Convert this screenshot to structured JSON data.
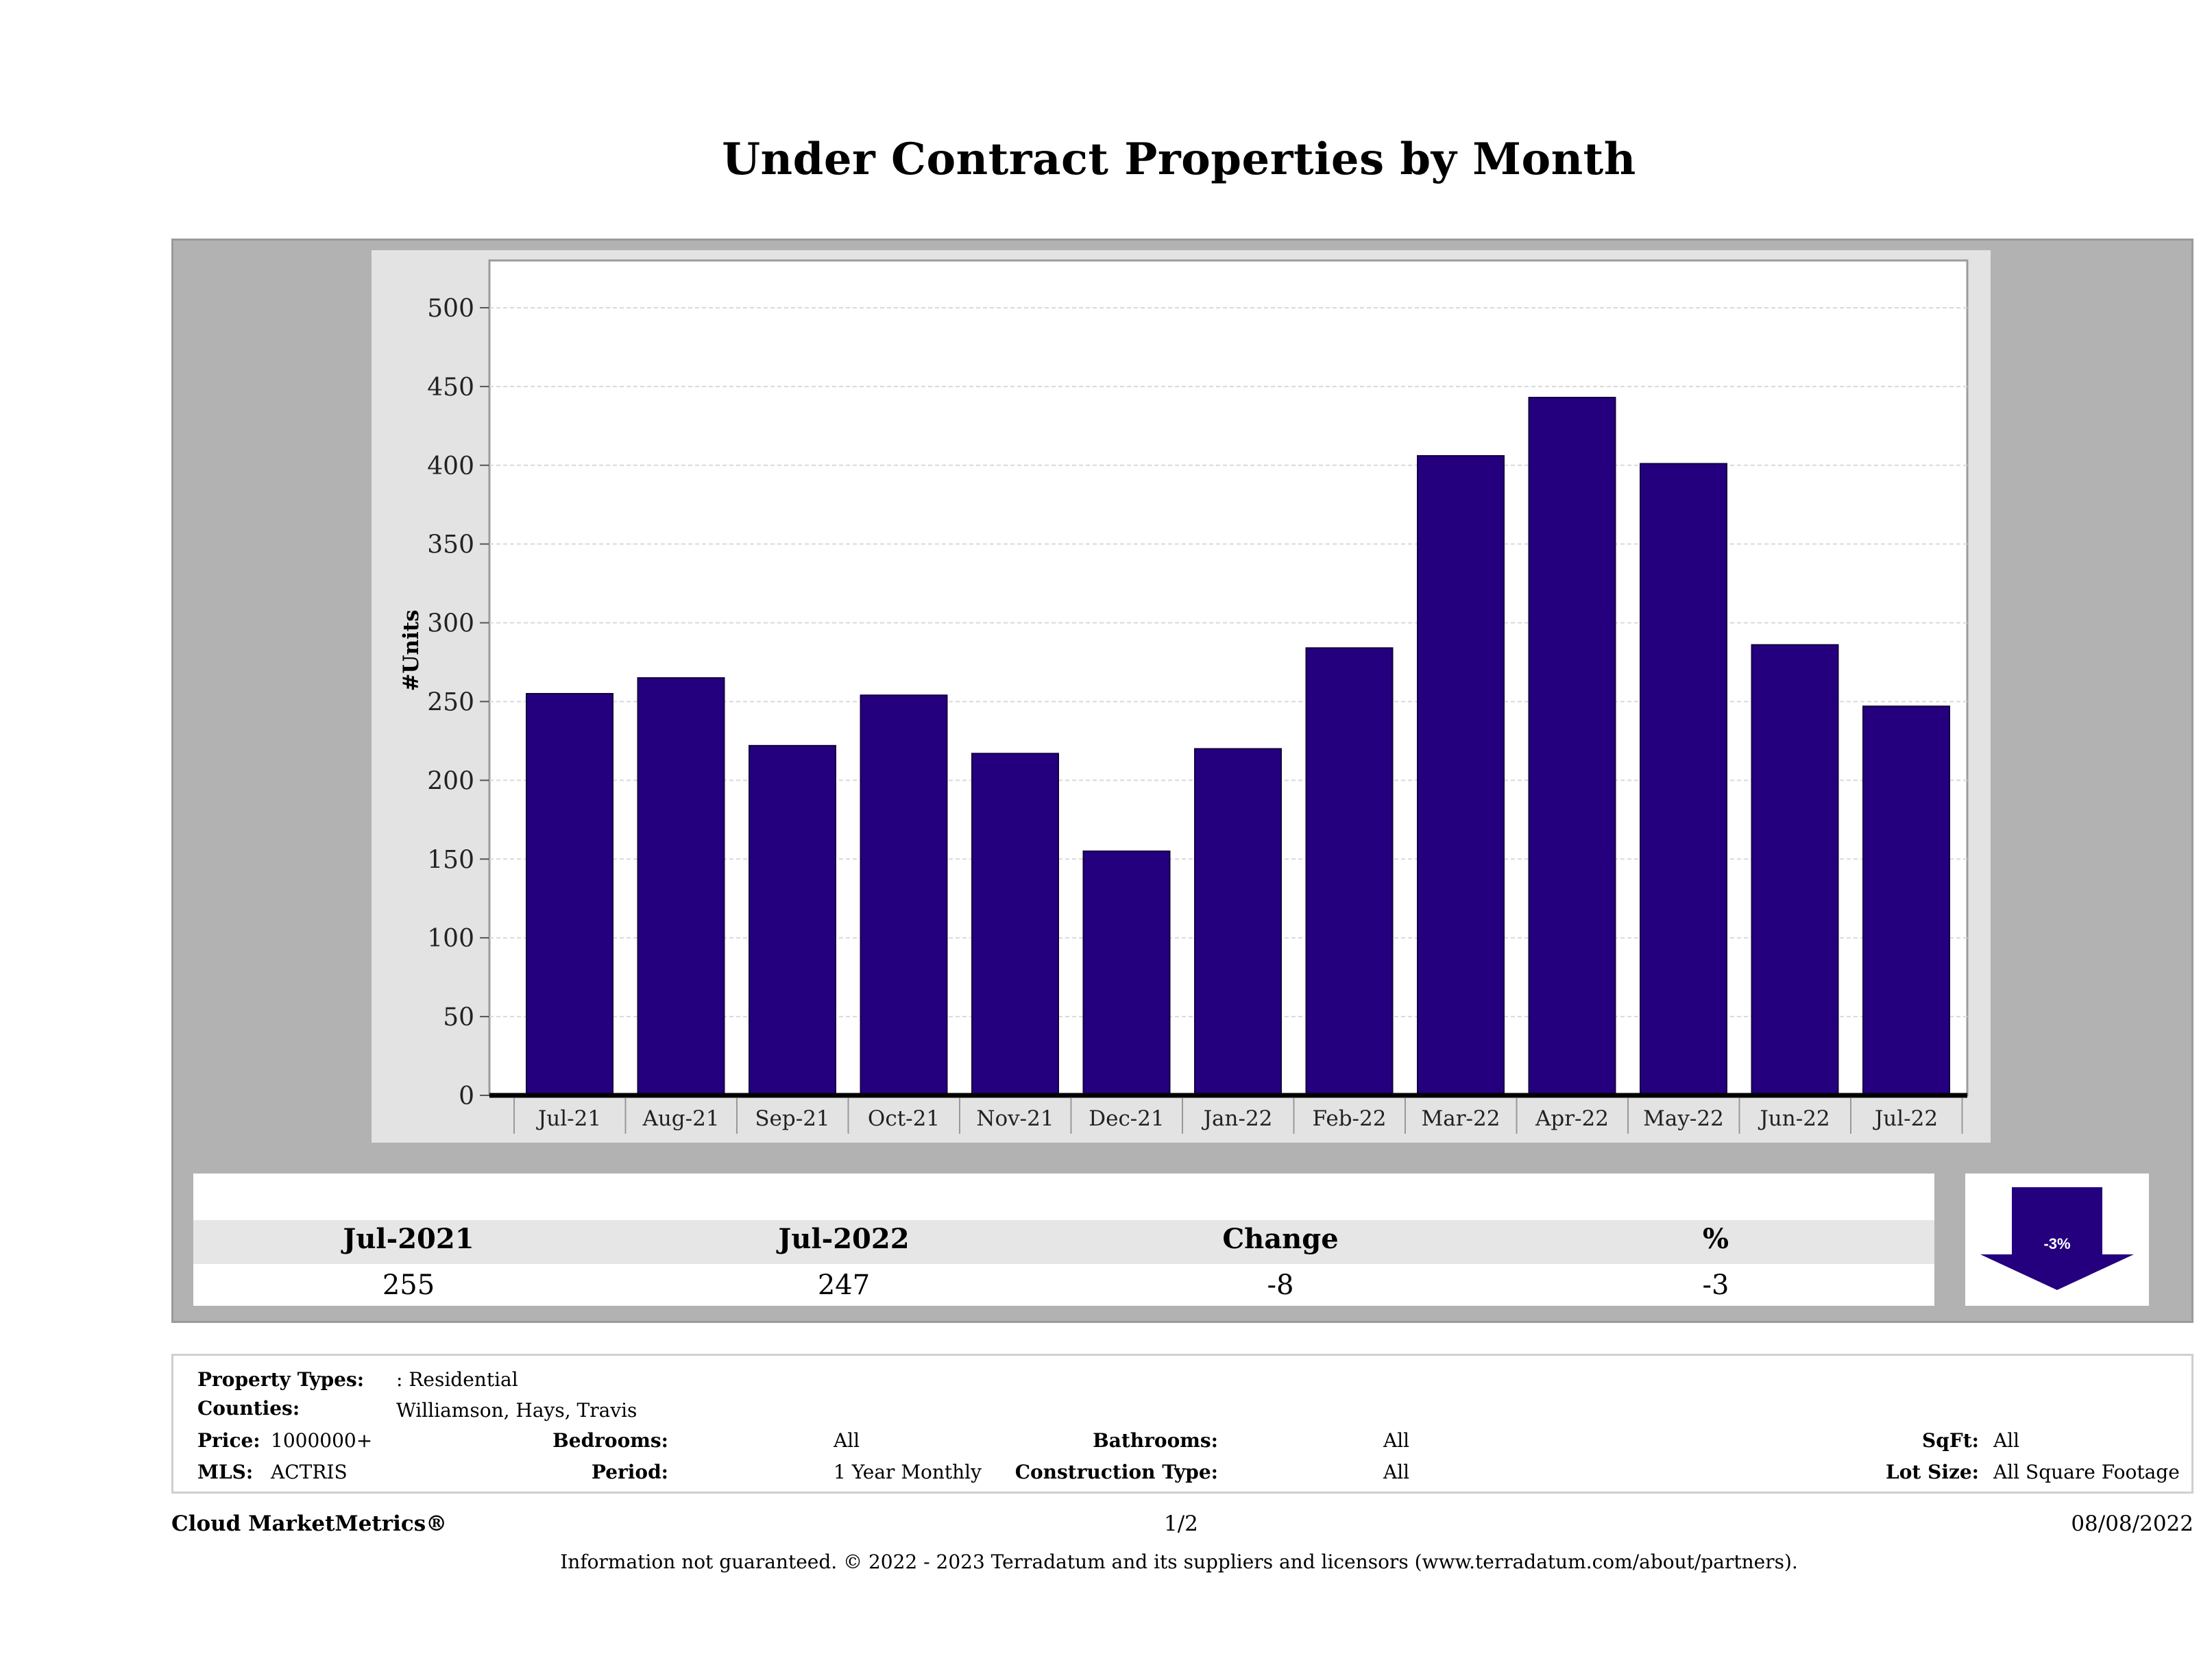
{
  "title": "Under Contract Properties by Month",
  "chart_data": {
    "type": "bar",
    "title": "Under Contract Properties by Month",
    "ylabel": "#Units",
    "xlabel": "",
    "ylim": [
      0,
      530
    ],
    "yticks": [
      0,
      50,
      100,
      150,
      200,
      250,
      300,
      350,
      400,
      450,
      500
    ],
    "grid": true,
    "bar_color": "#24007f",
    "categories": [
      "Jul-21",
      "Aug-21",
      "Sep-21",
      "Oct-21",
      "Nov-21",
      "Dec-21",
      "Jan-22",
      "Feb-22",
      "Mar-22",
      "Apr-22",
      "May-22",
      "Jun-22",
      "Jul-22"
    ],
    "values": [
      255,
      265,
      222,
      254,
      217,
      155,
      220,
      284,
      406,
      443,
      401,
      286,
      247
    ]
  },
  "stats": {
    "headers": [
      "Jul-2021",
      "Jul-2022",
      "Change",
      "%"
    ],
    "values": [
      "255",
      "247",
      "-8",
      "-3"
    ],
    "badge": "-3%",
    "badge_icon": "down-arrow-icon",
    "badge_color": "#24007f"
  },
  "info": {
    "property_types_label": "Property Types:",
    "property_types": ": Residential",
    "counties_label": "Counties:",
    "counties": "Williamson, Hays, Travis",
    "price_label": "Price:",
    "price": "1000000+",
    "mls_label": "MLS:",
    "mls": "ACTRIS",
    "bedrooms_label": "Bedrooms:",
    "bedrooms": "All",
    "period_label": "Period:",
    "period": "1 Year Monthly",
    "bathrooms_label": "Bathrooms:",
    "bathrooms": "All",
    "construction_label": "Construction Type:",
    "construction": "All",
    "sqft_label": "SqFt:",
    "sqft": "All",
    "lot_label": "Lot Size:",
    "lot": "All Square Footage"
  },
  "footer": {
    "brand": "Cloud MarketMetrics®",
    "page": "1/2",
    "date": "08/08/2022",
    "disclaimer": "Information not guaranteed. © 2022 - 2023 Terradatum and its suppliers and licensors (www.terradatum.com/about/partners)."
  }
}
